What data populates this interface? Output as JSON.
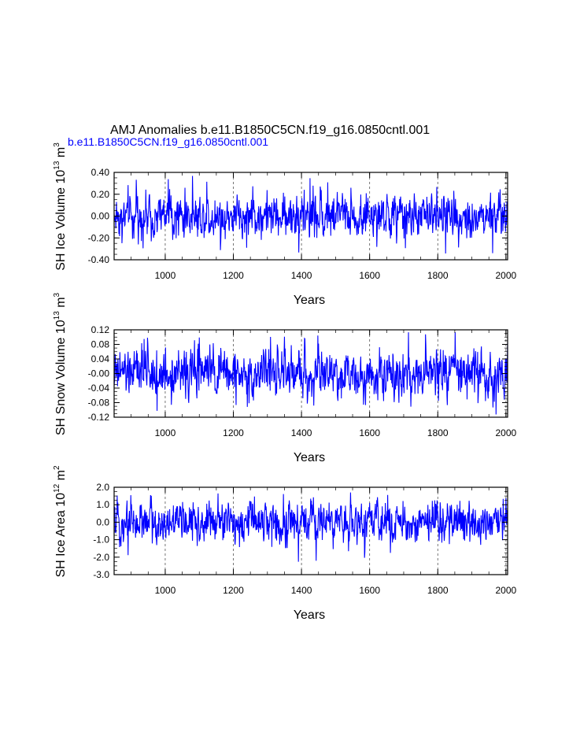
{
  "title": "AMJ Anomalies b.e11.B1850C5CN.f19_g16.0850cntl.001",
  "subtitle": "b.e11.B1850C5CN.f19_g16.0850cntl.001",
  "colors": {
    "series": "#0000ff",
    "axis": "#000000",
    "subtitle": "#0000ff"
  },
  "chart_data": [
    {
      "type": "line",
      "ylabel": "SH Ice Volume 10",
      "ylabel_exp": "13",
      "ylabel_unit": "m",
      "ylabel_unit_exp": "3",
      "xlabel": "Years",
      "xlim": [
        850,
        2005
      ],
      "ylim": [
        -0.4,
        0.4
      ],
      "xticks": [
        "1000",
        "1200",
        "1400",
        "1600",
        "1800",
        "2000"
      ],
      "yticks": [
        "-0.40",
        "-0.20",
        "0.00",
        "0.20",
        "0.40"
      ],
      "series": [
        {
          "name": "SH Ice Volume anomaly",
          "amplitude": 0.09,
          "min": -0.35,
          "max": 0.37
        }
      ]
    },
    {
      "type": "line",
      "ylabel": "SH Snow Volume 10",
      "ylabel_exp": "13",
      "ylabel_unit": "m",
      "ylabel_unit_exp": "3",
      "xlabel": "Years",
      "xlim": [
        850,
        2005
      ],
      "ylim": [
        -0.12,
        0.12
      ],
      "xticks": [
        "1000",
        "1200",
        "1400",
        "1600",
        "1800",
        "2000"
      ],
      "yticks": [
        "-0.12",
        "-0.08",
        "-0.04",
        "-0.00",
        "0.04",
        "0.08",
        "0.12"
      ],
      "series": [
        {
          "name": "SH Snow Volume anomaly",
          "amplitude": 0.03,
          "min": -0.115,
          "max": 0.117
        }
      ]
    },
    {
      "type": "line",
      "ylabel": "SH Ice Area 10",
      "ylabel_exp": "12",
      "ylabel_unit": "m",
      "ylabel_unit_exp": "2",
      "xlabel": "Years",
      "xlim": [
        850,
        2005
      ],
      "ylim": [
        -3.0,
        2.0
      ],
      "xticks": [
        "1000",
        "1200",
        "1400",
        "1600",
        "1800",
        "2000"
      ],
      "yticks": [
        "-3.0",
        "-2.0",
        "-1.0",
        "0.0",
        "1.0",
        "2.0"
      ],
      "series": [
        {
          "name": "SH Ice Area anomaly",
          "amplitude": 0.55,
          "min": -2.3,
          "max": 1.7
        }
      ]
    }
  ]
}
